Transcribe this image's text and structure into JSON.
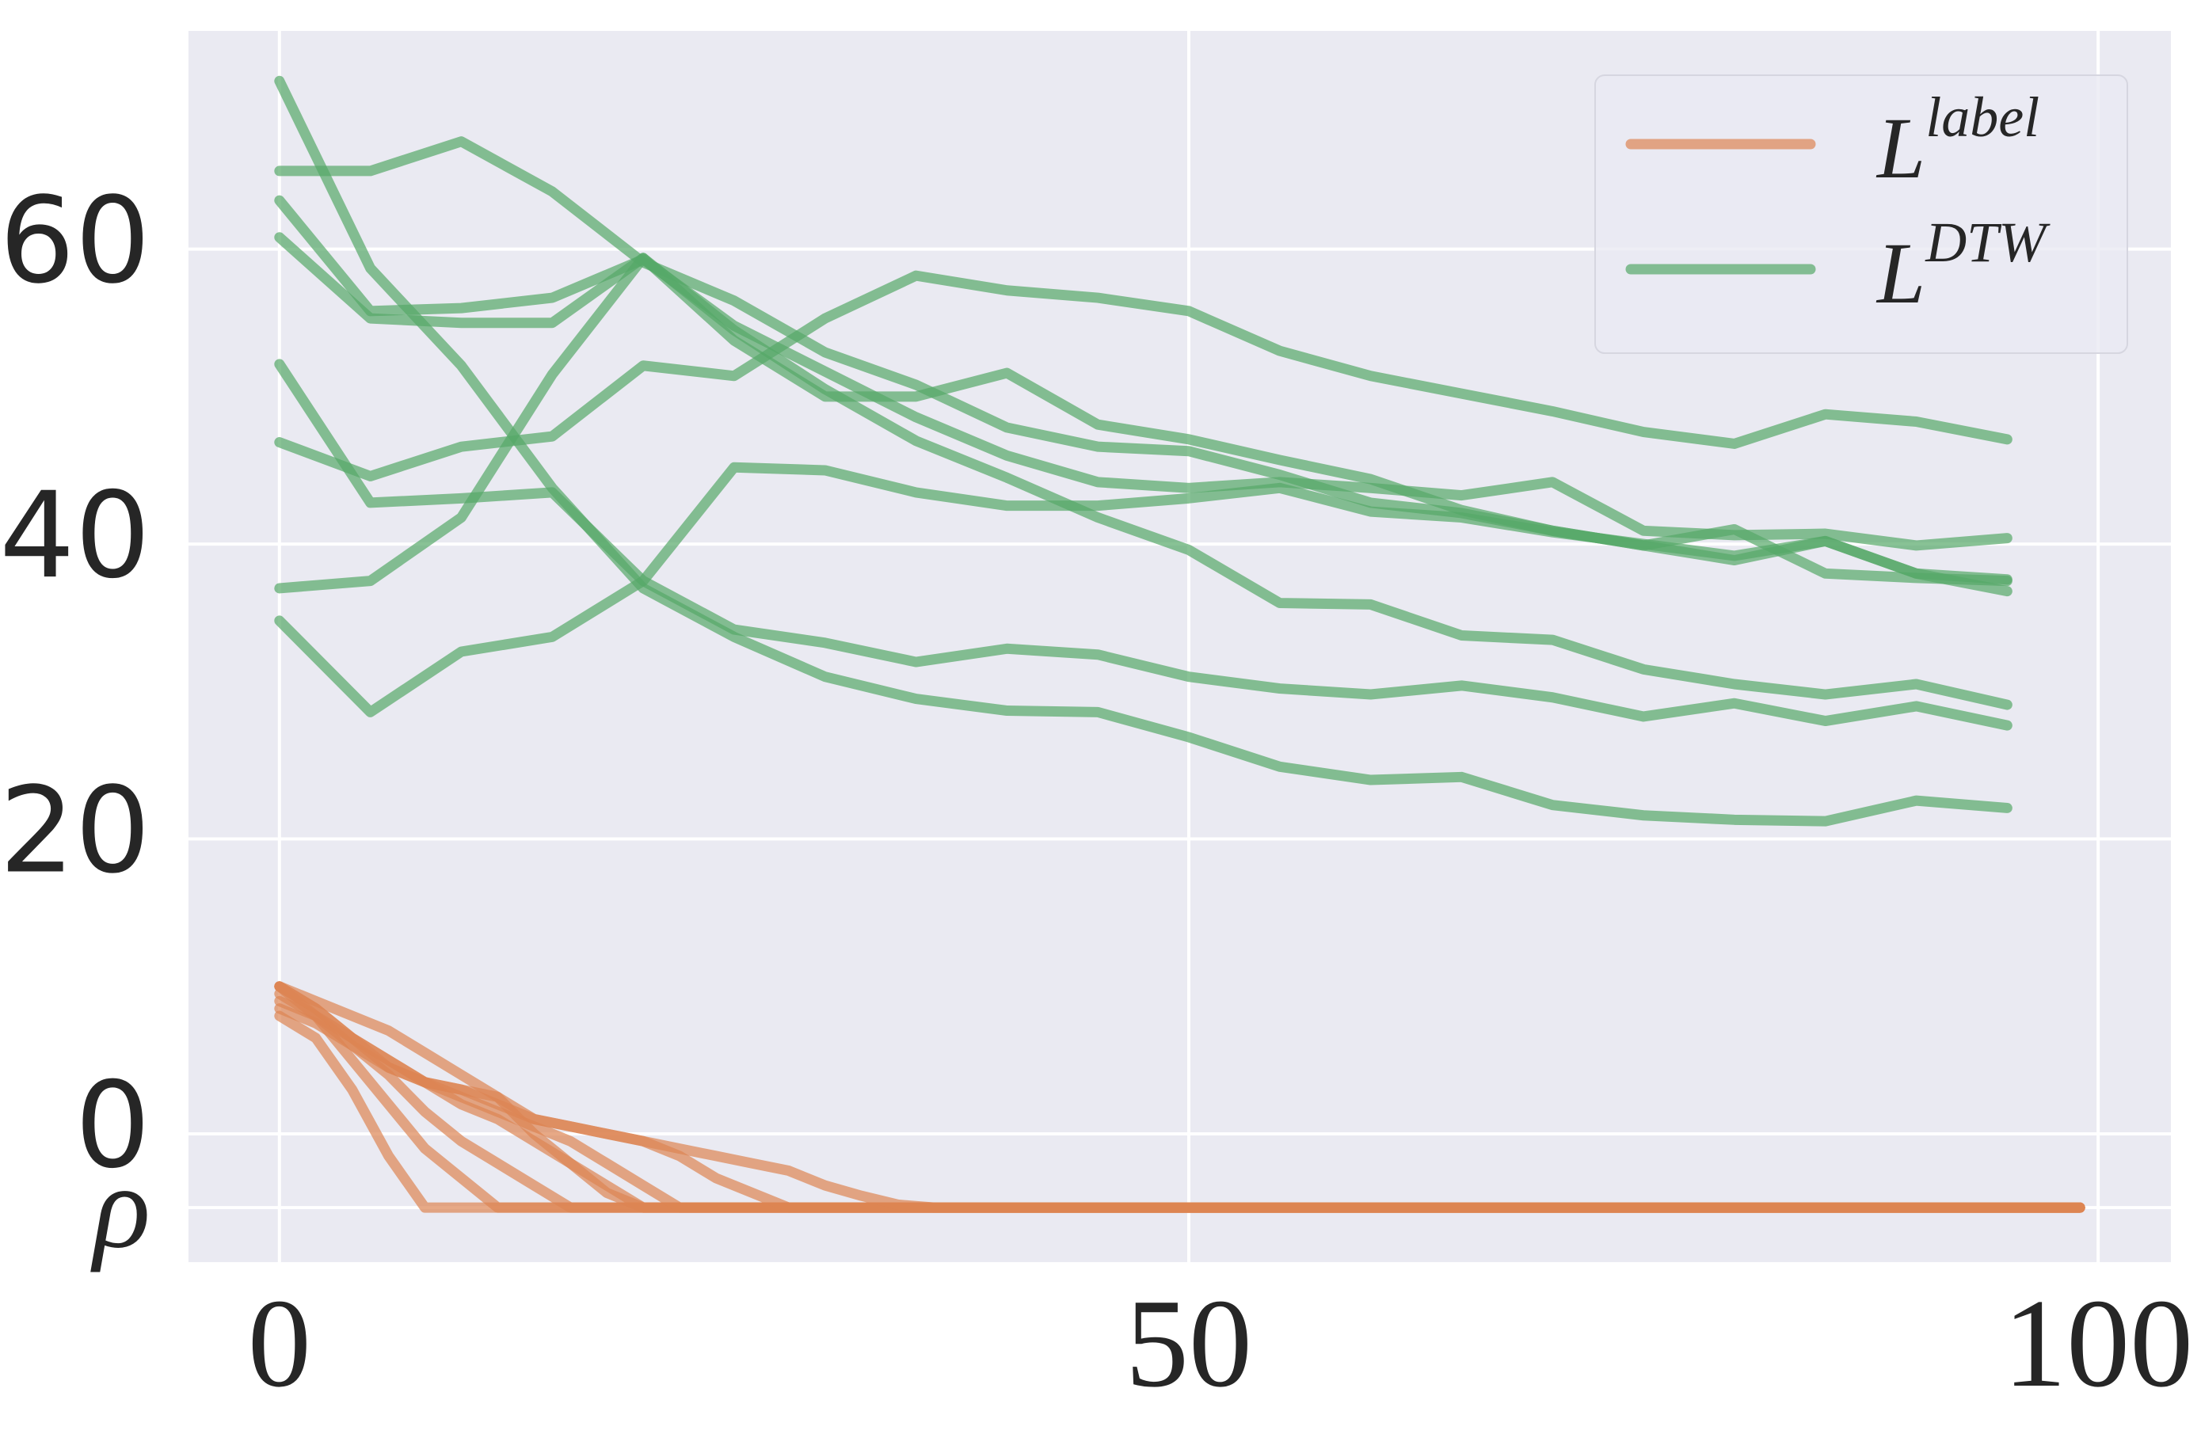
{
  "chart_data": {
    "type": "line",
    "xlim": [
      -5,
      104
    ],
    "ylim": [
      -8.7,
      74.8
    ],
    "xticks": [
      0,
      50,
      100
    ],
    "yticks": [
      {
        "value": -5,
        "label": "ρ"
      },
      0,
      20,
      40,
      60
    ],
    "grid": true,
    "legend": "upper right",
    "series": [
      {
        "name": "L",
        "name_sup": "label",
        "color": "#dd8452",
        "x": [
          0,
          2,
          4,
          6,
          8,
          10,
          12,
          14,
          16,
          18,
          20,
          22,
          24,
          26,
          28,
          30,
          32,
          34,
          36,
          38,
          40,
          50,
          60,
          70,
          80,
          90,
          99
        ],
        "lines": [
          [
            8,
            6.5,
            3,
            -1.5,
            -5,
            -5,
            -5,
            -5,
            -5,
            -5,
            -5,
            -5,
            -5,
            -5,
            -5,
            -5,
            -5,
            -5,
            -5,
            -5,
            -5,
            -5,
            -5,
            -5,
            -5,
            -5,
            -5
          ],
          [
            10,
            8,
            5,
            2,
            -1,
            -3,
            -5,
            -5,
            -5,
            -5,
            -5,
            -5,
            -5,
            -5,
            -5,
            -5,
            -5,
            -5,
            -5,
            -5,
            -5,
            -5,
            -5,
            -5,
            -5,
            -5,
            -5
          ],
          [
            9.5,
            8,
            6,
            4,
            1.5,
            -0.5,
            -2,
            -3.5,
            -5,
            -5,
            -5,
            -5,
            -5,
            -5,
            -5,
            -5,
            -5,
            -5,
            -5,
            -5,
            -5,
            -5,
            -5,
            -5,
            -5,
            -5,
            -5
          ],
          [
            10,
            8.5,
            6.5,
            5,
            3.5,
            2,
            1,
            -0.5,
            -2,
            -3.5,
            -5,
            -5,
            -5,
            -5,
            -5,
            -5,
            -5,
            -5,
            -5,
            -5,
            -5,
            -5,
            -5,
            -5,
            -5,
            -5,
            -5
          ],
          [
            8.5,
            7.5,
            6,
            4.5,
            3.5,
            2.5,
            1.5,
            0.5,
            -0.5,
            -2,
            -3.5,
            -5,
            -5,
            -5,
            -5,
            -5,
            -5,
            -5,
            -5,
            -5,
            -5,
            -5,
            -5,
            -5,
            -5,
            -5,
            -5
          ],
          [
            10,
            9,
            8,
            7,
            5.5,
            4,
            2.5,
            0,
            -2,
            -4,
            -5,
            -5,
            -5,
            -5,
            -5,
            -5,
            -5,
            -5,
            -5,
            -5,
            -5,
            -5,
            -5,
            -5,
            -5,
            -5,
            -5
          ],
          [
            9,
            8,
            6.5,
            5,
            3.5,
            3,
            2,
            1,
            0.5,
            0,
            -0.5,
            -1.5,
            -3,
            -4,
            -5,
            -5,
            -5,
            -5,
            -5,
            -5,
            -5,
            -5,
            -5,
            -5,
            -5,
            -5,
            -5
          ],
          [
            10,
            8.5,
            6.5,
            4.5,
            3.5,
            3,
            2.5,
            1,
            0.5,
            0,
            -0.5,
            -1,
            -1.5,
            -2,
            -2.5,
            -3.5,
            -4.2,
            -4.8,
            -5,
            -5,
            -5,
            -5,
            -5,
            -5,
            -5,
            -5,
            -5
          ]
        ]
      },
      {
        "name": "L",
        "name_sup": "DTW",
        "color": "#55a868",
        "x": [
          0,
          5,
          10,
          15,
          20,
          25,
          30,
          35,
          40,
          45,
          50,
          55,
          60,
          65,
          70,
          75,
          80,
          85,
          90,
          95
        ],
        "lines": [
          [
            71.4,
            58.7,
            52.1,
            43.8,
            37,
            33.7,
            31,
            29.5,
            28.7,
            28.6,
            26.9,
            24.9,
            24,
            24.2,
            22.3,
            21.6,
            21.3,
            21.2,
            22.6,
            22.1
          ],
          [
            65.3,
            65.3,
            67.3,
            63.9,
            59.1,
            56.5,
            53,
            50.8,
            47.9,
            46.6,
            46.3,
            44.7,
            42.8,
            42.1,
            40.9,
            39.9,
            41,
            38,
            37.7,
            37.5
          ],
          [
            63.3,
            55.8,
            56,
            56.7,
            59.3,
            54.8,
            51.7,
            48.6,
            46,
            44.2,
            43.8,
            44.2,
            43.8,
            43.3,
            44.2,
            40.9,
            40.6,
            40.7,
            39.9,
            40.4
          ],
          [
            60.8,
            55.3,
            55,
            55,
            59.4,
            53.8,
            50,
            50,
            51.6,
            48.1,
            47.1,
            45.7,
            44.4,
            42.3,
            40.9,
            39.9,
            38.9,
            40.2,
            38,
            36.8
          ],
          [
            52.2,
            42.8,
            43.1,
            43.5,
            37.5,
            34.2,
            33.3,
            32,
            32.9,
            32.5,
            31,
            30.2,
            29.8,
            30.4,
            29.6,
            28.3,
            29.2,
            28,
            29,
            27.7
          ],
          [
            46.9,
            44.6,
            46.6,
            47.3,
            52.1,
            51.4,
            55.3,
            58.2,
            57.2,
            56.7,
            55.8,
            53.1,
            51.4,
            50.2,
            49,
            47.6,
            46.8,
            48.8,
            48.3,
            47.1
          ],
          [
            34.8,
            28.6,
            32.7,
            33.7,
            37.5,
            45.2,
            45,
            43.5,
            42.6,
            42.6,
            43.1,
            43.8,
            42.2,
            41.8,
            40.8,
            40,
            39.2,
            40.2,
            38,
            37.6
          ],
          [
            37,
            37.5,
            41.8,
            51.5,
            59.4,
            54.5,
            50.5,
            47,
            44.5,
            41.8,
            39.6,
            36,
            35.9,
            33.8,
            33.5,
            31.5,
            30.5,
            29.8,
            30.5,
            29.1
          ]
        ]
      }
    ]
  }
}
